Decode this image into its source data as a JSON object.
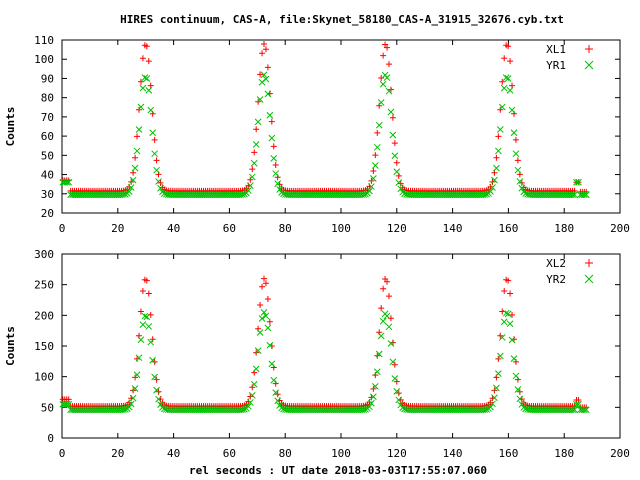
{
  "title": "HIRES continuum, CAS-A, file:Skynet_58180_CAS-A_31915_32676.cyb.txt",
  "xlabel": "rel seconds : UT date 2018-03-03T17:55:07.060",
  "colors": {
    "series1": "#ff0000",
    "series2": "#00c000",
    "frame": "#000000"
  },
  "chart_data": [
    {
      "type": "scatter",
      "title": "HIRES continuum, CAS-A, file:Skynet_58180_CAS-A_31915_32676.cyb.txt",
      "xlabel": "",
      "ylabel": "Counts",
      "xlim": [
        0,
        200
      ],
      "ylim": [
        20,
        110
      ],
      "xticks": [
        0,
        20,
        40,
        60,
        80,
        100,
        120,
        140,
        160,
        180,
        200
      ],
      "yticks": [
        20,
        30,
        40,
        50,
        60,
        70,
        80,
        90,
        100,
        110
      ],
      "grid": false,
      "legend_position": "top-right",
      "x_range": [
        0,
        188
      ],
      "peak_centers": [
        30,
        72.5,
        116,
        159.5
      ],
      "peak_sigma": 2.2,
      "series": [
        {
          "name": "XL1",
          "marker": "+",
          "baseline_segments": [
            {
              "x": [
                0,
                2.5
              ],
              "y": 37
            },
            {
              "x": [
                2.5,
                184
              ],
              "y": 31.5
            },
            {
              "x": [
                181.5,
                185.5
              ],
              "y": 36
            },
            {
              "x": [
                185.5,
                188
              ],
              "y": 31
            }
          ],
          "peak_heights": [
            108,
            108,
            108,
            108
          ]
        },
        {
          "name": "YR1",
          "marker": "x",
          "baseline_segments": [
            {
              "x": [
                0,
                2.5
              ],
              "y": 36
            },
            {
              "x": [
                2.5,
                184
              ],
              "y": 29.5
            },
            {
              "x": [
                181.5,
                185.5
              ],
              "y": 36
            },
            {
              "x": [
                185.5,
                188
              ],
              "y": 29.5
            }
          ],
          "peak_heights": [
            91,
            92,
            92,
            91
          ]
        }
      ]
    },
    {
      "type": "scatter",
      "xlabel": "rel seconds : UT date 2018-03-03T17:55:07.060",
      "ylabel": "Counts",
      "xlim": [
        0,
        200
      ],
      "ylim": [
        0,
        300
      ],
      "xticks": [
        0,
        20,
        40,
        60,
        80,
        100,
        120,
        140,
        160,
        180,
        200
      ],
      "yticks": [
        0,
        50,
        100,
        150,
        200,
        250,
        300
      ],
      "grid": false,
      "legend_position": "top-right",
      "x_range": [
        0,
        188
      ],
      "peak_centers": [
        30,
        72.5,
        116,
        159.5
      ],
      "peak_sigma": 2.2,
      "series": [
        {
          "name": "XL2",
          "marker": "+",
          "baseline_segments": [
            {
              "x": [
                0,
                2.5
              ],
              "y": 63
            },
            {
              "x": [
                2.5,
                184
              ],
              "y": 52
            },
            {
              "x": [
                181.5,
                185.5
              ],
              "y": 62
            },
            {
              "x": [
                185.5,
                188
              ],
              "y": 50
            }
          ],
          "peak_heights": [
            260,
            260,
            260,
            260
          ]
        },
        {
          "name": "YR2",
          "marker": "x",
          "baseline_segments": [
            {
              "x": [
                0,
                2.5
              ],
              "y": 55
            },
            {
              "x": [
                2.5,
                184
              ],
              "y": 46
            },
            {
              "x": [
                181.5,
                185.5
              ],
              "y": 55
            },
            {
              "x": [
                185.5,
                188
              ],
              "y": 46
            }
          ],
          "peak_heights": [
            200,
            205,
            203,
            205
          ]
        }
      ]
    }
  ]
}
